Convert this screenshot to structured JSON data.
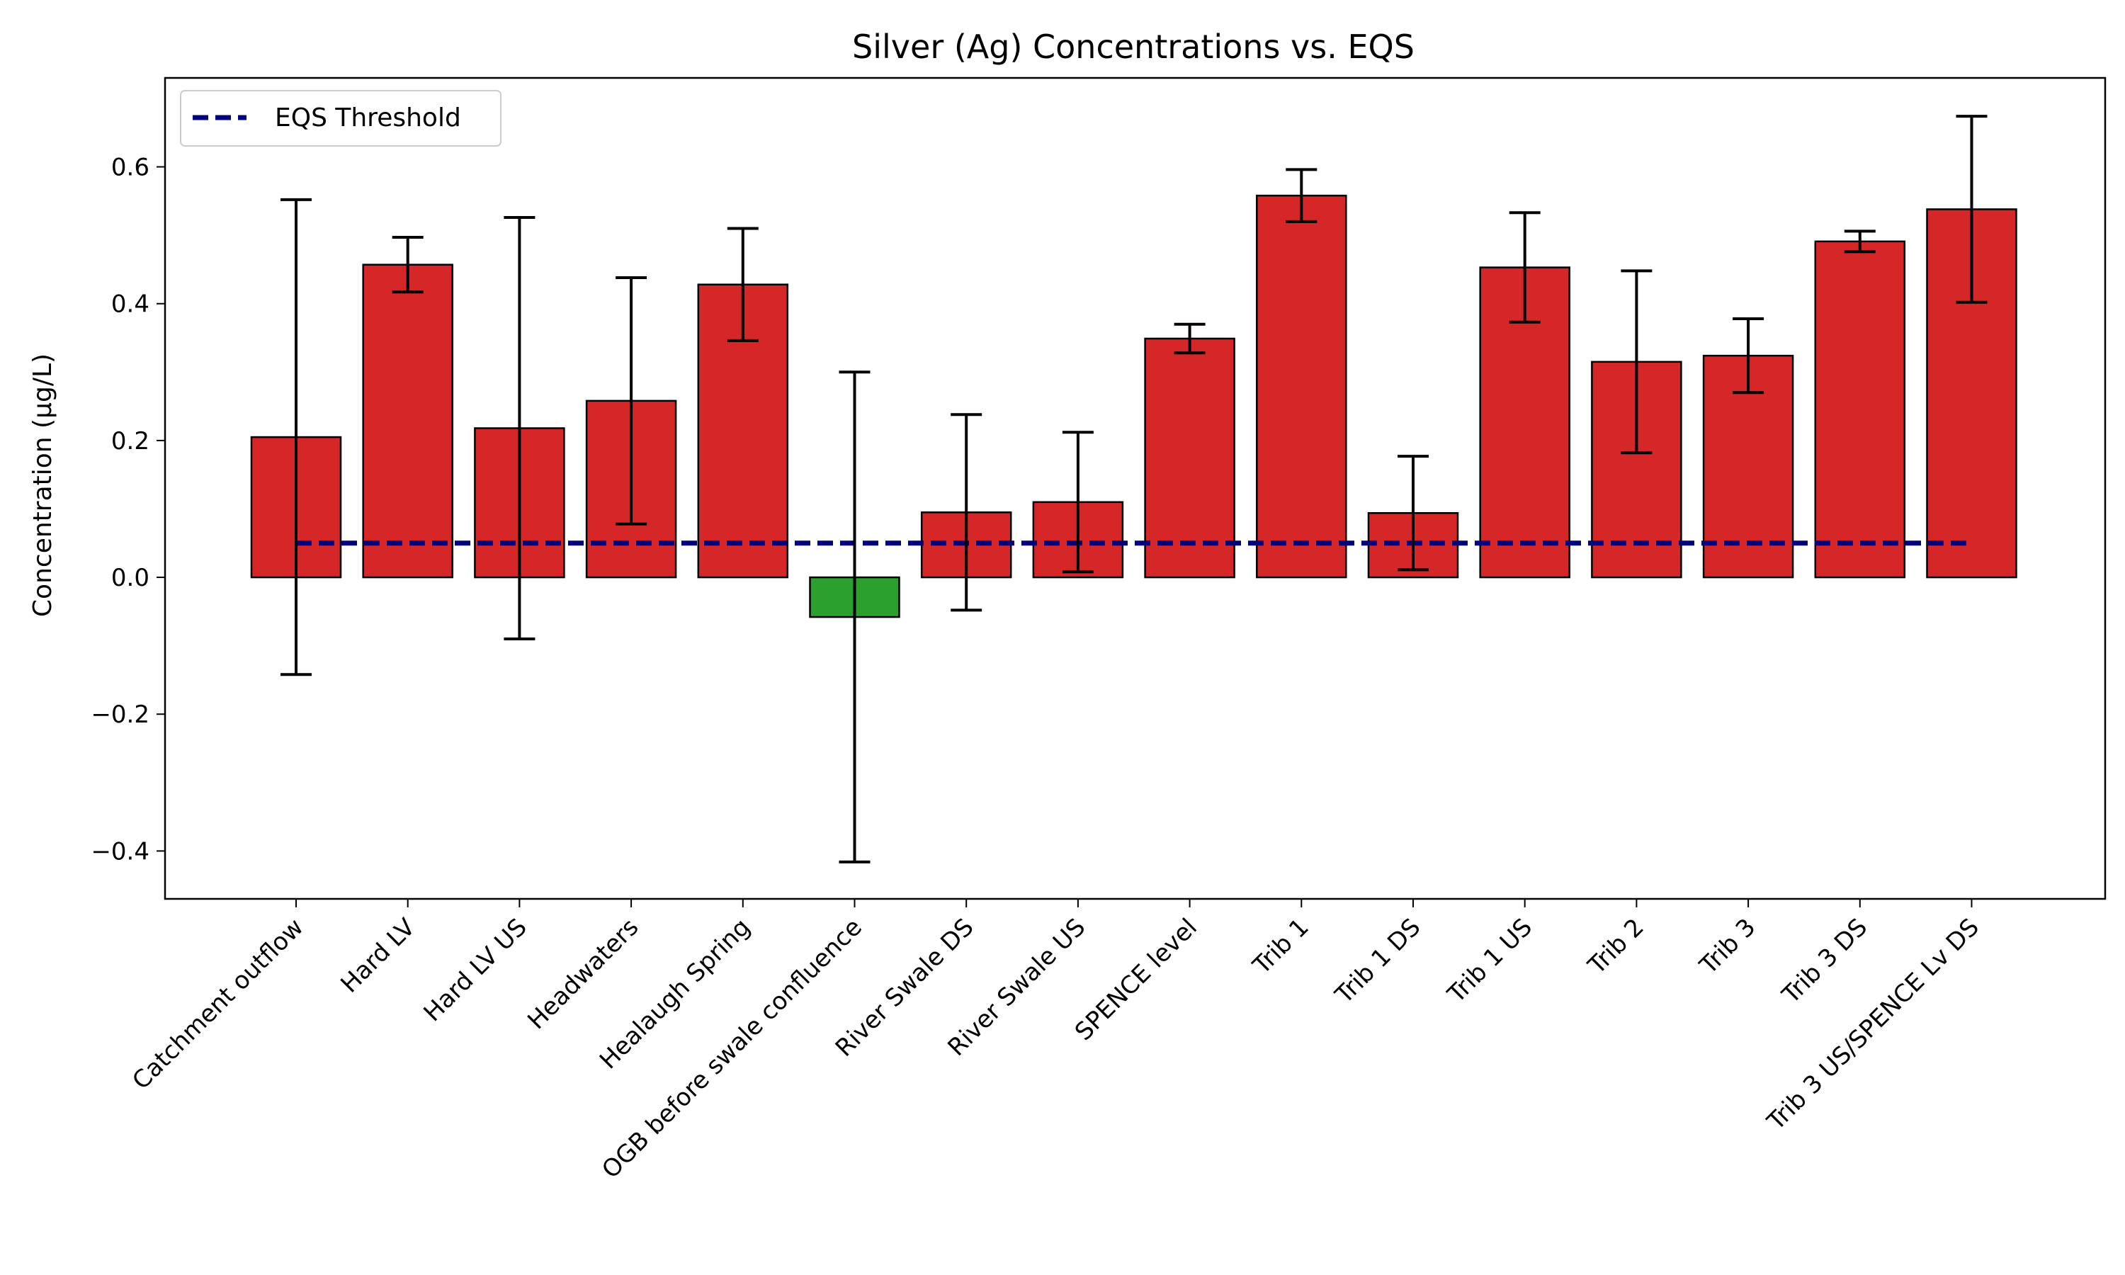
{
  "chart_data": {
    "type": "bar",
    "title": "Silver (Ag) Concentrations vs. EQS",
    "xlabel": "",
    "ylabel": "Concentration (µg/L)",
    "ylim": [
      -0.47,
      0.73
    ],
    "yticks": [
      -0.4,
      -0.2,
      0.0,
      0.2,
      0.4,
      0.6
    ],
    "ytick_labels": [
      "−0.4",
      "−0.2",
      "0.0",
      "0.2",
      "0.4",
      "0.6"
    ],
    "grid": false,
    "legend": {
      "placement": "top-left",
      "entries": [
        "EQS Threshold"
      ]
    },
    "categories": [
      "Catchment outflow",
      "Hard LV",
      "Hard LV US",
      "Headwaters",
      "Healaugh Spring",
      "OGB before swale confluence",
      "River Swale DS",
      "River Swale US",
      "SPENCE level",
      "Trib 1",
      "Trib 1 DS",
      "Trib 1 US",
      "Trib 2",
      "Trib 3",
      "Trib 3 DS",
      "Trib 3 US/SPENCE Lv DS"
    ],
    "values": [
      0.205,
      0.457,
      0.218,
      0.258,
      0.428,
      -0.058,
      0.095,
      0.11,
      0.349,
      0.558,
      0.094,
      0.453,
      0.315,
      0.324,
      0.491,
      0.538
    ],
    "error": [
      0.347,
      0.04,
      0.308,
      0.18,
      0.082,
      0.358,
      0.143,
      0.102,
      0.021,
      0.038,
      0.083,
      0.08,
      0.133,
      0.054,
      0.015,
      0.136
    ],
    "threshold": {
      "name": "EQS Threshold",
      "value": 0.05
    },
    "colors": {
      "above": "#d62728",
      "below": "#2ca02c",
      "threshold": "#000080",
      "edge": "#000000"
    }
  }
}
